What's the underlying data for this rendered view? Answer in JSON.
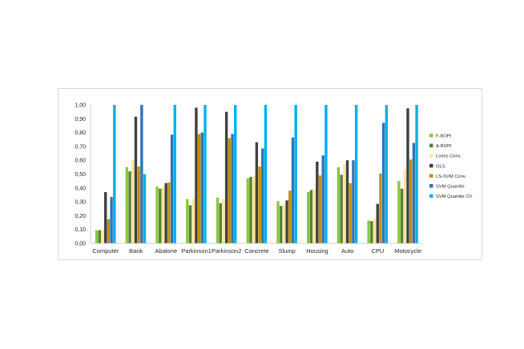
{
  "chart_data": {
    "type": "bar",
    "title": "",
    "xlabel": "",
    "ylabel": "",
    "ylim": [
      0,
      1
    ],
    "yticks": [
      "0,00",
      "0,10",
      "0,20",
      "0,30",
      "0,40",
      "0,50",
      "0,60",
      "0,70",
      "0,80",
      "0,90",
      "1,00"
    ],
    "grid": false,
    "legend_position": "right",
    "categories": [
      "Computer",
      "Bank",
      "Abalone",
      "Parkinson1",
      "Parkinson2",
      "Concrete",
      "Slump",
      "Housing",
      "Auto",
      "CPU",
      "Motocycle"
    ],
    "series": [
      {
        "name": "F-BOPI",
        "color": "#8dc63f",
        "values": [
          0.095,
          0.55,
          0.41,
          0.32,
          0.33,
          0.47,
          0.305,
          0.37,
          0.55,
          0.165,
          0.45
        ]
      },
      {
        "name": "A-BOPI",
        "color": "#548235",
        "values": [
          0.095,
          0.52,
          0.395,
          0.275,
          0.29,
          0.48,
          0.27,
          0.385,
          0.495,
          0.16,
          0.395
        ]
      },
      {
        "name": "Loess Conv.",
        "color": "#ffe699",
        "values": [
          0.095,
          0.6,
          0.405,
          0.32,
          0.32,
          0.485,
          0.285,
          0.39,
          0.57,
          0.18,
          0.535
        ]
      },
      {
        "name": "OLS",
        "color": "#404040",
        "values": [
          0.37,
          0.915,
          0.435,
          0.98,
          0.95,
          0.73,
          0.31,
          0.59,
          0.6,
          0.285,
          0.975
        ]
      },
      {
        "name": "LS-SVM Conv.",
        "color": "#bf9000",
        "values": [
          0.175,
          0.555,
          0.44,
          0.79,
          0.76,
          0.555,
          0.38,
          0.49,
          0.435,
          0.505,
          0.605
        ]
      },
      {
        "name": "SVM Quantile",
        "color": "#2e75b6",
        "values": [
          0.335,
          1.0,
          0.785,
          0.8,
          0.79,
          0.685,
          0.765,
          0.635,
          0.6,
          0.87,
          0.725
        ]
      },
      {
        "name": "SVM Quantile CV",
        "color": "#00b0f0",
        "values": [
          1.0,
          0.5,
          1.0,
          1.0,
          1.0,
          1.0,
          1.0,
          1.0,
          1.0,
          1.0,
          1.0
        ]
      }
    ]
  }
}
